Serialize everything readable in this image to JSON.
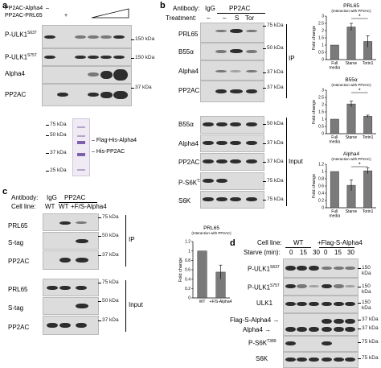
{
  "panel_a": {
    "letter": "a",
    "legend_rows": [
      {
        "label": "PP2AC-Alpha4",
        "marks": [
          "–",
          "+"
        ]
      },
      {
        "label": "PP2AC-PRL65",
        "marks": [
          "–",
          "+"
        ]
      }
    ],
    "rows": [
      "P-ULK1 S637",
      "P-ULK1 S757",
      "Alpha4",
      "PP2AC"
    ],
    "row_labels_main": [
      "P-ULK1",
      "P-ULK1",
      "Alpha4",
      "PP2AC"
    ],
    "row_sups": [
      "S637",
      "S757"
    ],
    "kda": [
      "150 kDa",
      "150 kDa",
      "37 kDa"
    ],
    "gel_markers": [
      "75 kDa",
      "50 kDa",
      "37 kDa",
      "25 kDa"
    ],
    "gel_labels": [
      "Flag-His-Alpha4",
      "His-PP2AC"
    ]
  },
  "panel_b": {
    "letter": "b",
    "antibody_label": "Antibody:",
    "antibody_igg": "IgG",
    "antibody_pp2ac": "PP2AC",
    "treatment_label": "Treatment:",
    "treatments": [
      "–",
      "–",
      "S",
      "Tor"
    ],
    "ip_rows": [
      "PRL65",
      "B55α",
      "Alpha4",
      "PP2AC"
    ],
    "input_rows": [
      "B55α",
      "Alpha4",
      "PP2AC",
      "P-S6K T389",
      "S6K"
    ],
    "input_row_main": [
      "B55α",
      "Alpha4",
      "PP2AC",
      "P-S6K",
      "S6K"
    ],
    "ps6k_sup": "T389",
    "ip_kda": [
      "75 kDa",
      "50 kDa",
      "37 kDa",
      "37 kDa"
    ],
    "input_kda": [
      "50 kDa",
      "37 kDa",
      "37 kDa",
      "75 kDa",
      "75 kDa"
    ],
    "ip_tag": "IP",
    "input_tag": "Input"
  },
  "panel_c": {
    "letter": "c",
    "antibody_label": "Antibody:",
    "antibody_igg": "IgG",
    "antibody_pp2ac": "PP2AC",
    "cell_line_label": "Cell line:",
    "cell_lines": [
      "WT",
      "WT",
      "+F/S-Alpha4"
    ],
    "ip_rows": [
      "PRL65",
      "S-tag",
      "PP2AC"
    ],
    "input_rows": [
      "PRL65",
      "S-tag",
      "PP2AC"
    ],
    "ip_kda": [
      "75 kDa",
      "50 kDa",
      "37 kDa"
    ],
    "input_kda": [
      "75 kDa",
      "50 kDa",
      "37 kDa"
    ],
    "ip_tag": "IP",
    "input_tag": "Input"
  },
  "panel_d": {
    "letter": "d",
    "cell_line_label": "Cell line:",
    "cell_lines": [
      "WT",
      "+Flag-S-Alpha4"
    ],
    "starve_label": "Starve (min):",
    "starve_times": [
      "0",
      "15",
      "30",
      "0",
      "15",
      "30"
    ],
    "rows": [
      "P-ULK1 S637",
      "P-ULK1 S757",
      "ULK1",
      "Flag-S-Alpha4",
      "Alpha4",
      "P-S6K T389",
      "S6K"
    ],
    "row_main": [
      "P-ULK1",
      "P-ULK1",
      "ULK1",
      "Flag-S-Alpha4",
      "Alpha4",
      "P-S6K",
      "S6K"
    ],
    "row_sups": [
      "S637",
      "S757",
      "T389"
    ],
    "kda": [
      "150 kDa",
      "150 kDa",
      "150 kDa",
      "37 kDa",
      "37 kDa",
      "75 kDa",
      "75 kDa"
    ]
  },
  "chart_data": [
    {
      "type": "bar",
      "title": "PRL65",
      "subtitle": "(Interaction with PP2AC)",
      "categories": [
        "Full media",
        "Starve",
        "Torin1"
      ],
      "values": [
        1.0,
        2.25,
        1.25
      ],
      "errors": [
        0,
        0.25,
        0.4
      ],
      "ylabel": "Fold change",
      "ylim": [
        0,
        3
      ],
      "yticks": [
        "0",
        "0.5",
        "1",
        "1.5",
        "2",
        "2.5",
        "3"
      ],
      "significance": "*"
    },
    {
      "type": "bar",
      "title": "B55α",
      "subtitle": "(Interaction with PP2AC)",
      "categories": [
        "Full media",
        "Starve",
        "Torin1"
      ],
      "values": [
        1.0,
        2.05,
        1.2
      ],
      "errors": [
        0,
        0.2,
        0.08
      ],
      "ylabel": "Fold change",
      "ylim": [
        0,
        3
      ],
      "yticks": [
        "0",
        "0.5",
        "1",
        "1.5",
        "2",
        "2.5",
        "3"
      ],
      "significance": "*"
    },
    {
      "type": "bar",
      "title": "Alpha4",
      "subtitle": "(Interaction with PP2AC)",
      "categories": [
        "Full media",
        "Starve",
        "Torin1"
      ],
      "values": [
        1.0,
        0.62,
        1.02
      ],
      "errors": [
        0,
        0.15,
        0.08
      ],
      "ylabel": "Fold change",
      "ylim": [
        0,
        1.2
      ],
      "yticks": [
        "0",
        "0.2",
        "0.4",
        "0.6",
        "0.8",
        "1",
        "1.2"
      ],
      "significance": "*"
    },
    {
      "type": "bar",
      "title": "PRL65",
      "subtitle": "(Interaction with PP2AC)",
      "categories": [
        "WT",
        "+F/S-Alpha4"
      ],
      "values": [
        1.0,
        0.55
      ],
      "errors": [
        0,
        0.15
      ],
      "ylabel": "Fold change",
      "ylim": [
        0,
        1.2
      ],
      "yticks": [
        "0",
        "0.2",
        "0.4",
        "0.6",
        "0.8",
        "1",
        "1.2"
      ]
    }
  ]
}
